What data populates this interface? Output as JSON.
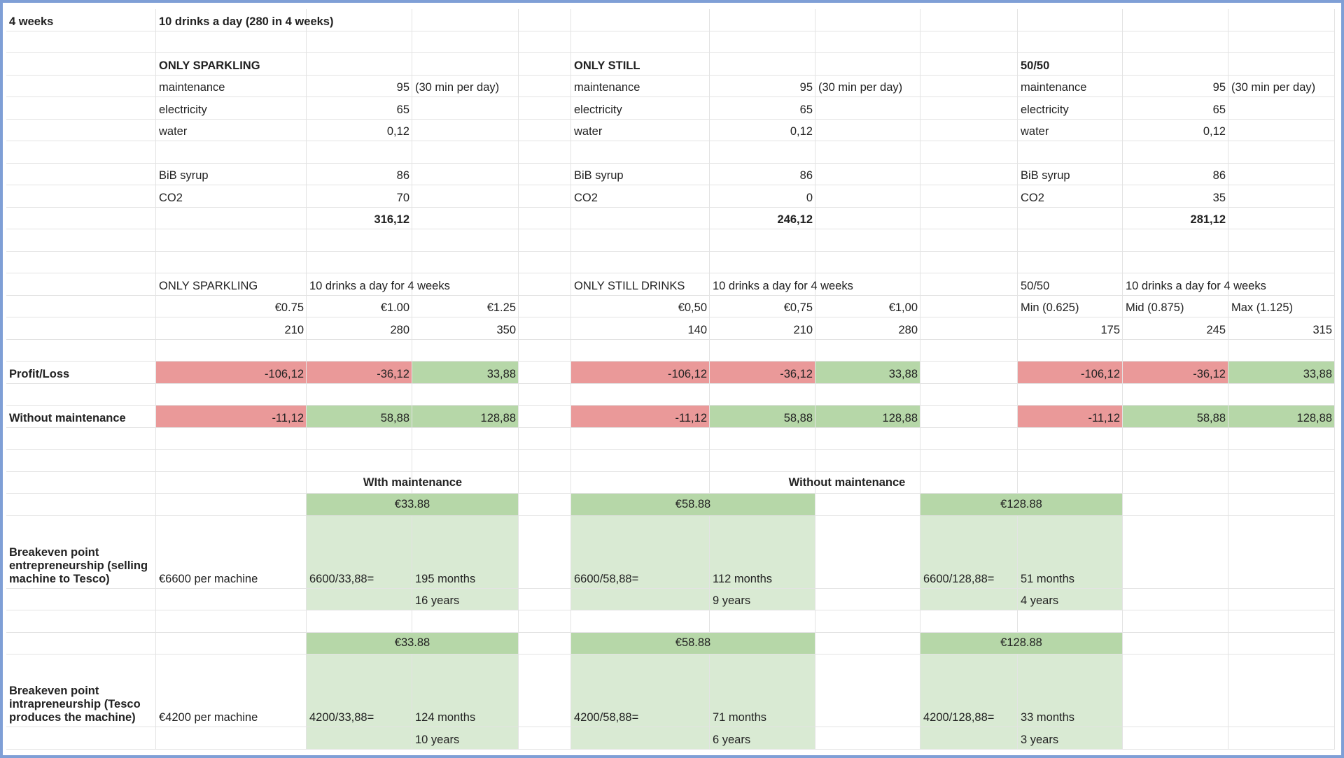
{
  "cells": {
    "A1": "4 weeks",
    "B1": "10 drinks a day (280 in 4 weeks)",
    "B3": "ONLY SPARKLING",
    "F3": "ONLY STILL",
    "J3": "50/50",
    "B4": "maintenance",
    "C4": "95",
    "D4": "(30 min per day)",
    "F4": "maintenance",
    "G4": "95",
    "H4": "(30 min per day)",
    "J4": "maintenance",
    "K4": "95",
    "L4": "(30 min per day)",
    "B5": "electricity",
    "C5": "65",
    "F5": "electricity",
    "G5": "65",
    "J5": "electricity",
    "K5": "65",
    "B6": "water",
    "C6": "0,12",
    "F6": "water",
    "G6": "0,12",
    "J6": "water",
    "K6": "0,12",
    "B8": "BiB syrup",
    "C8": "86",
    "F8": "BiB syrup",
    "G8": "86",
    "J8": "BiB syrup",
    "K8": "86",
    "B9": "CO2",
    "C9": "70",
    "F9": "CO2",
    "G9": "0",
    "J9": "CO2",
    "K9": "35",
    "C10": "316,12",
    "G10": "246,12",
    "K10": "281,12",
    "B13": "ONLY SPARKLING",
    "C13": "10 drinks a day for 4 weeks",
    "F13": "ONLY STILL DRINKS",
    "G13": "10 drinks a day for 4 weeks",
    "J13": "50/50",
    "K13": "10 drinks a day for 4 weeks",
    "B14": "€0.75",
    "C14": "€1.00",
    "D14": "€1.25",
    "F14": "€0,50",
    "G14": "€0,75",
    "H14": "€1,00",
    "J14": "Min (0.625)",
    "K14": "Mid (0.875)",
    "L14": "Max (1.125)",
    "B15": "210",
    "C15": "280",
    "D15": "350",
    "F15": "140",
    "G15": "210",
    "H15": "280",
    "J15": "175",
    "K15": "245",
    "L15": "315",
    "A17": "Profit/Loss",
    "B17": "-106,12",
    "C17": "-36,12",
    "D17": "33,88",
    "F17": "-106,12",
    "G17": "-36,12",
    "H17": "33,88",
    "J17": "-106,12",
    "K17": "-36,12",
    "L17": "33,88",
    "A19": "Without maintenance",
    "B19": "-11,12",
    "C19": "58,88",
    "D19": "128,88",
    "F19": "-11,12",
    "G19": "58,88",
    "H19": "128,88",
    "J19": "-11,12",
    "K19": "58,88",
    "L19": "128,88",
    "C22": "WIth maintenance",
    "F22": "Without maintenance",
    "C23": "€33.88",
    "F23": "€58.88",
    "I23": "€128.88",
    "A24": "Breakeven point entrepreneurship (selling machine to Tesco)",
    "B24": "€6600 per machine",
    "C24": "6600/33,88=",
    "D24": "195 months",
    "F24": "6600/58,88=",
    "G24": "112 months",
    "I24": "6600/128,88=",
    "J24": "51 months",
    "D25": "16 years",
    "G25": "9 years",
    "J25": "4 years",
    "C27": "€33.88",
    "F27": "€58.88",
    "I27": "€128.88",
    "A28": "Breakeven point intrapreneurship (Tesco produces the machine)",
    "B28": "€4200 per machine",
    "C28": "4200/33,88=",
    "D28": "124 months",
    "F28": "4200/58,88=",
    "G28": "71 months",
    "I28": "4200/128,88=",
    "J28": "33 months",
    "D29": "10 years",
    "G29": "6 years",
    "J29": "3 years"
  }
}
